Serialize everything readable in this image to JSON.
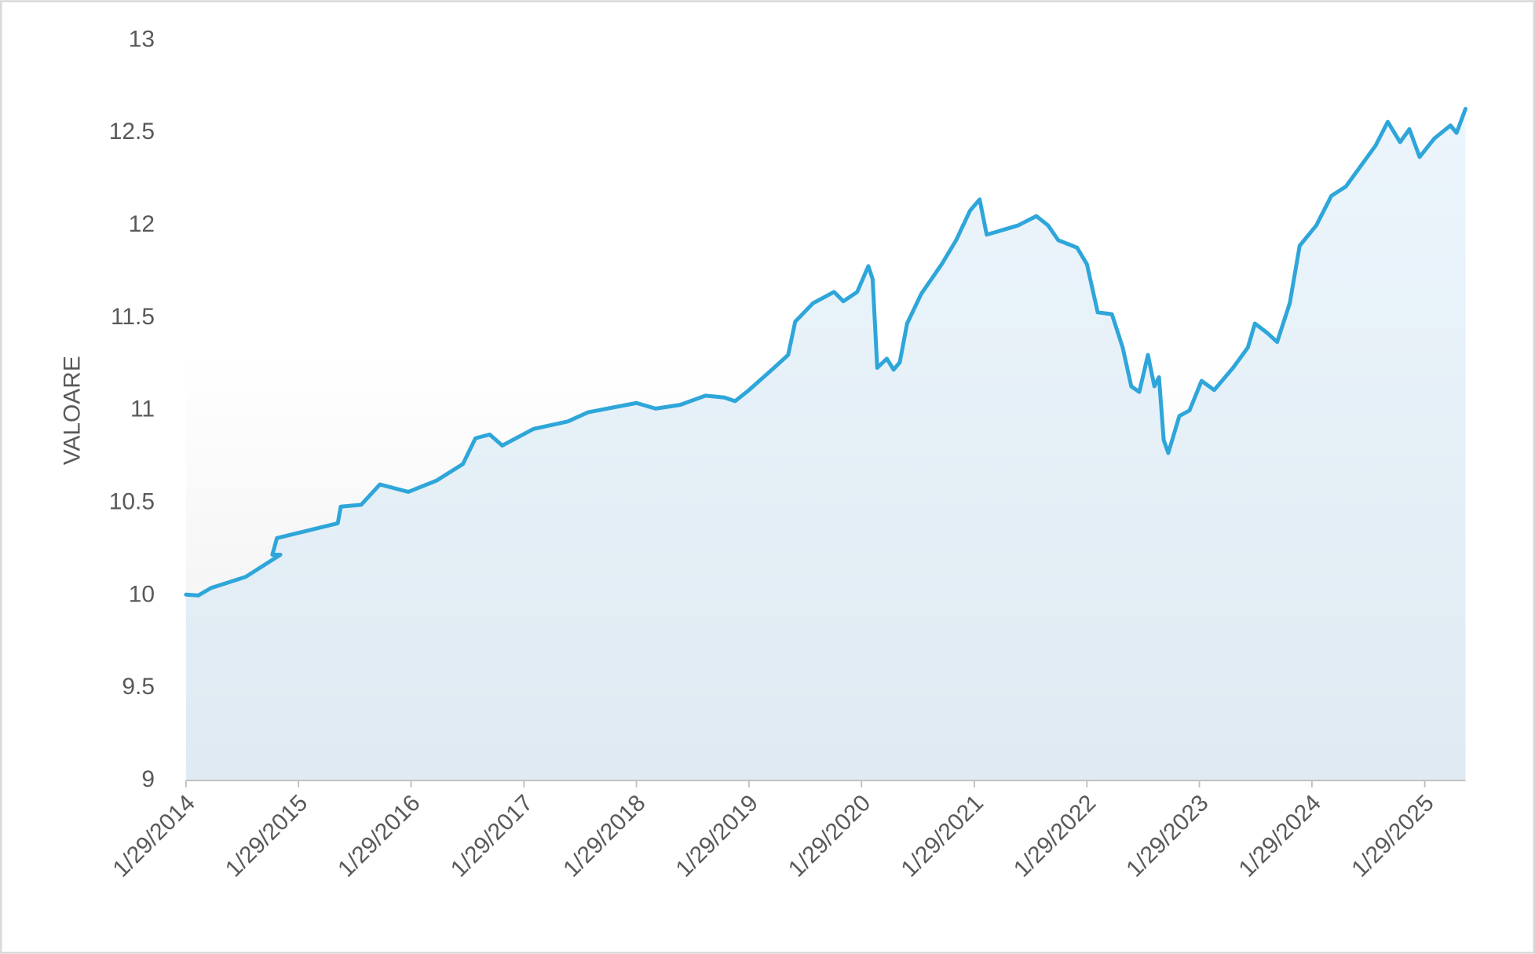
{
  "chart_data": {
    "type": "area",
    "y_label": "VALOARE",
    "x": [
      "2014-01-29",
      "2014-03-10",
      "2014-04-20",
      "2014-08-10",
      "2014-12-01",
      "2014-11-05",
      "2014-11-20",
      "2015-06-05",
      "2015-06-15",
      "2015-08-20",
      "2015-10-20",
      "2016-01-20",
      "2016-04-20",
      "2016-07-15",
      "2016-08-25",
      "2016-10-10",
      "2016-11-20",
      "2017-03-01",
      "2017-06-20",
      "2017-08-25",
      "2018-01-29",
      "2018-04-01",
      "2018-06-20",
      "2018-09-10",
      "2018-11-10",
      "2018-12-15",
      "2019-01-29",
      "2019-04-20",
      "2019-06-05",
      "2019-06-28",
      "2019-08-25",
      "2019-11-01",
      "2019-12-01",
      "2020-01-15",
      "2020-02-20",
      "2020-03-05",
      "2020-03-20",
      "2020-04-20",
      "2020-05-12",
      "2020-06-01",
      "2020-06-25",
      "2020-08-10",
      "2020-10-15",
      "2020-12-01",
      "2021-01-15",
      "2021-02-15",
      "2021-03-10",
      "2021-04-20",
      "2021-06-20",
      "2021-08-18",
      "2021-09-25",
      "2021-10-28",
      "2021-12-28",
      "2022-01-29",
      "2022-03-05",
      "2022-04-20",
      "2022-05-25",
      "2022-06-22",
      "2022-07-18",
      "2022-08-15",
      "2022-09-05",
      "2022-09-20",
      "2022-10-05",
      "2022-10-20",
      "2022-11-25",
      "2022-12-28",
      "2023-02-05",
      "2023-03-18",
      "2023-05-18",
      "2023-07-05",
      "2023-07-28",
      "2023-09-05",
      "2023-10-08",
      "2023-11-18",
      "2023-12-20",
      "2024-02-12",
      "2024-04-01",
      "2024-05-18",
      "2024-07-05",
      "2024-08-22",
      "2024-10-01",
      "2024-11-10",
      "2024-12-10",
      "2025-01-12",
      "2025-03-01",
      "2025-04-22",
      "2025-05-12",
      "2025-06-10"
    ],
    "series": [
      {
        "name": "VALOARE",
        "color": "#2ea6da",
        "values": [
          10.005,
          10.0,
          10.04,
          10.1,
          10.22,
          10.22,
          10.31,
          10.39,
          10.48,
          10.49,
          10.6,
          10.56,
          10.62,
          10.71,
          10.85,
          10.87,
          10.81,
          10.9,
          10.94,
          10.99,
          11.04,
          11.01,
          11.03,
          11.08,
          11.07,
          11.05,
          11.11,
          11.23,
          11.3,
          11.48,
          11.58,
          11.64,
          11.59,
          11.64,
          11.78,
          11.71,
          11.23,
          11.28,
          11.22,
          11.26,
          11.47,
          11.63,
          11.79,
          11.92,
          12.08,
          12.14,
          11.95,
          11.97,
          12.0,
          12.05,
          12.0,
          11.92,
          11.88,
          11.79,
          11.53,
          11.52,
          11.34,
          11.13,
          11.1,
          11.3,
          11.13,
          11.18,
          10.84,
          10.77,
          10.97,
          11.0,
          11.16,
          11.11,
          11.23,
          11.34,
          11.47,
          11.42,
          11.37,
          11.58,
          11.89,
          12.0,
          12.16,
          12.21,
          12.32,
          12.43,
          12.56,
          12.45,
          12.52,
          12.37,
          12.47,
          12.54,
          12.5,
          12.63
        ]
      }
    ],
    "xlim": [
      "2014-01-29",
      "2025-06-10"
    ],
    "xticks": [
      {
        "value": "2014-01-29",
        "label": "1/29/2014"
      },
      {
        "value": "2015-01-29",
        "label": "1/29/2015"
      },
      {
        "value": "2016-01-29",
        "label": "1/29/2016"
      },
      {
        "value": "2017-01-29",
        "label": "1/29/2017"
      },
      {
        "value": "2018-01-29",
        "label": "1/29/2018"
      },
      {
        "value": "2019-01-29",
        "label": "1/29/2019"
      },
      {
        "value": "2020-01-29",
        "label": "1/29/2020"
      },
      {
        "value": "2021-01-29",
        "label": "1/29/2021"
      },
      {
        "value": "2022-01-29",
        "label": "1/29/2022"
      },
      {
        "value": "2023-01-29",
        "label": "1/29/2023"
      },
      {
        "value": "2024-01-29",
        "label": "1/29/2024"
      },
      {
        "value": "2025-01-29",
        "label": "1/29/2025"
      }
    ],
    "ylim": [
      9,
      13
    ],
    "yticks": [
      9,
      9.5,
      10,
      10.5,
      11,
      11.5,
      12,
      12.5,
      13
    ],
    "grid": false
  }
}
